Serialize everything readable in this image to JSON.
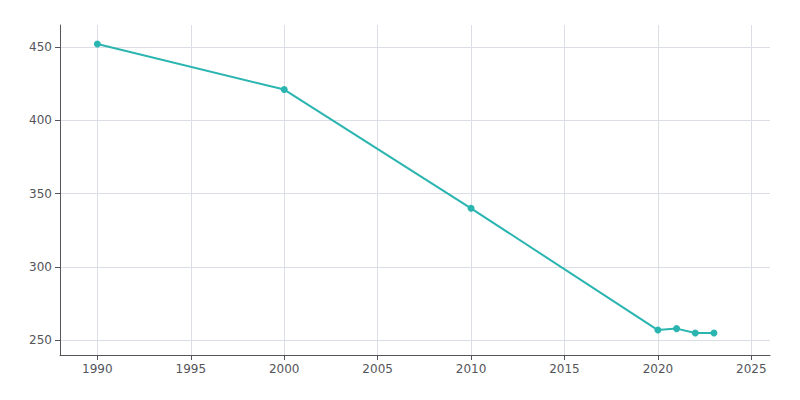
{
  "chart_data": {
    "type": "line",
    "x": [
      1990,
      2000,
      2010,
      2020,
      2021,
      2022,
      2023
    ],
    "values": [
      452,
      421,
      340,
      257,
      258,
      255,
      255
    ],
    "color": "#2ab5b0",
    "marker": "circle",
    "xlim": [
      1988,
      2026
    ],
    "xticks": [
      1990,
      1995,
      2000,
      2005,
      2010,
      2015,
      2020,
      2025
    ],
    "ylim": [
      240,
      465
    ],
    "yticks": [
      250,
      300,
      350,
      400,
      450
    ],
    "grid": true
  }
}
